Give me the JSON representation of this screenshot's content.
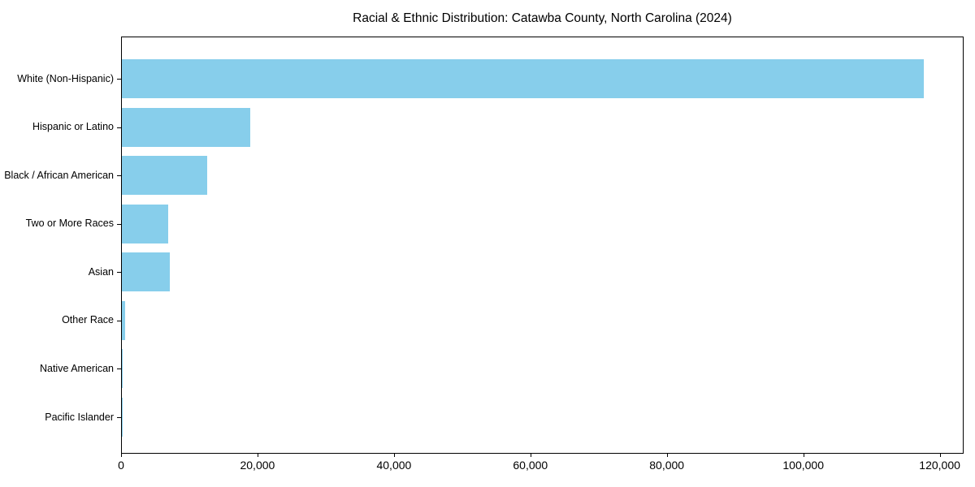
{
  "figure": {
    "title": "Racial & Ethnic Distribution: Catawba County, North Carolina (2024)"
  },
  "chart_data": {
    "type": "bar",
    "orientation": "horizontal",
    "title": "Racial & Ethnic Distribution: Catawba County, North Carolina (2024)",
    "categories": [
      "White (Non-Hispanic)",
      "Hispanic or Latino",
      "Black / African American",
      "Two or More Races",
      "Asian",
      "Other Race",
      "Native American",
      "Pacific Islander"
    ],
    "values": [
      117600,
      18800,
      12500,
      6800,
      7000,
      500,
      150,
      50
    ],
    "xlabel": "",
    "ylabel": "",
    "xlim": [
      0,
      123500
    ],
    "x_ticks": [
      0,
      20000,
      40000,
      60000,
      80000,
      100000,
      120000
    ],
    "x_tick_labels": [
      "0",
      "20,000",
      "40,000",
      "60,000",
      "80,000",
      "100,000",
      "120,000"
    ],
    "bar_color": "#87CEEB",
    "text_color": "#000000",
    "background": "#ffffff",
    "grid": false,
    "legend": "none"
  }
}
